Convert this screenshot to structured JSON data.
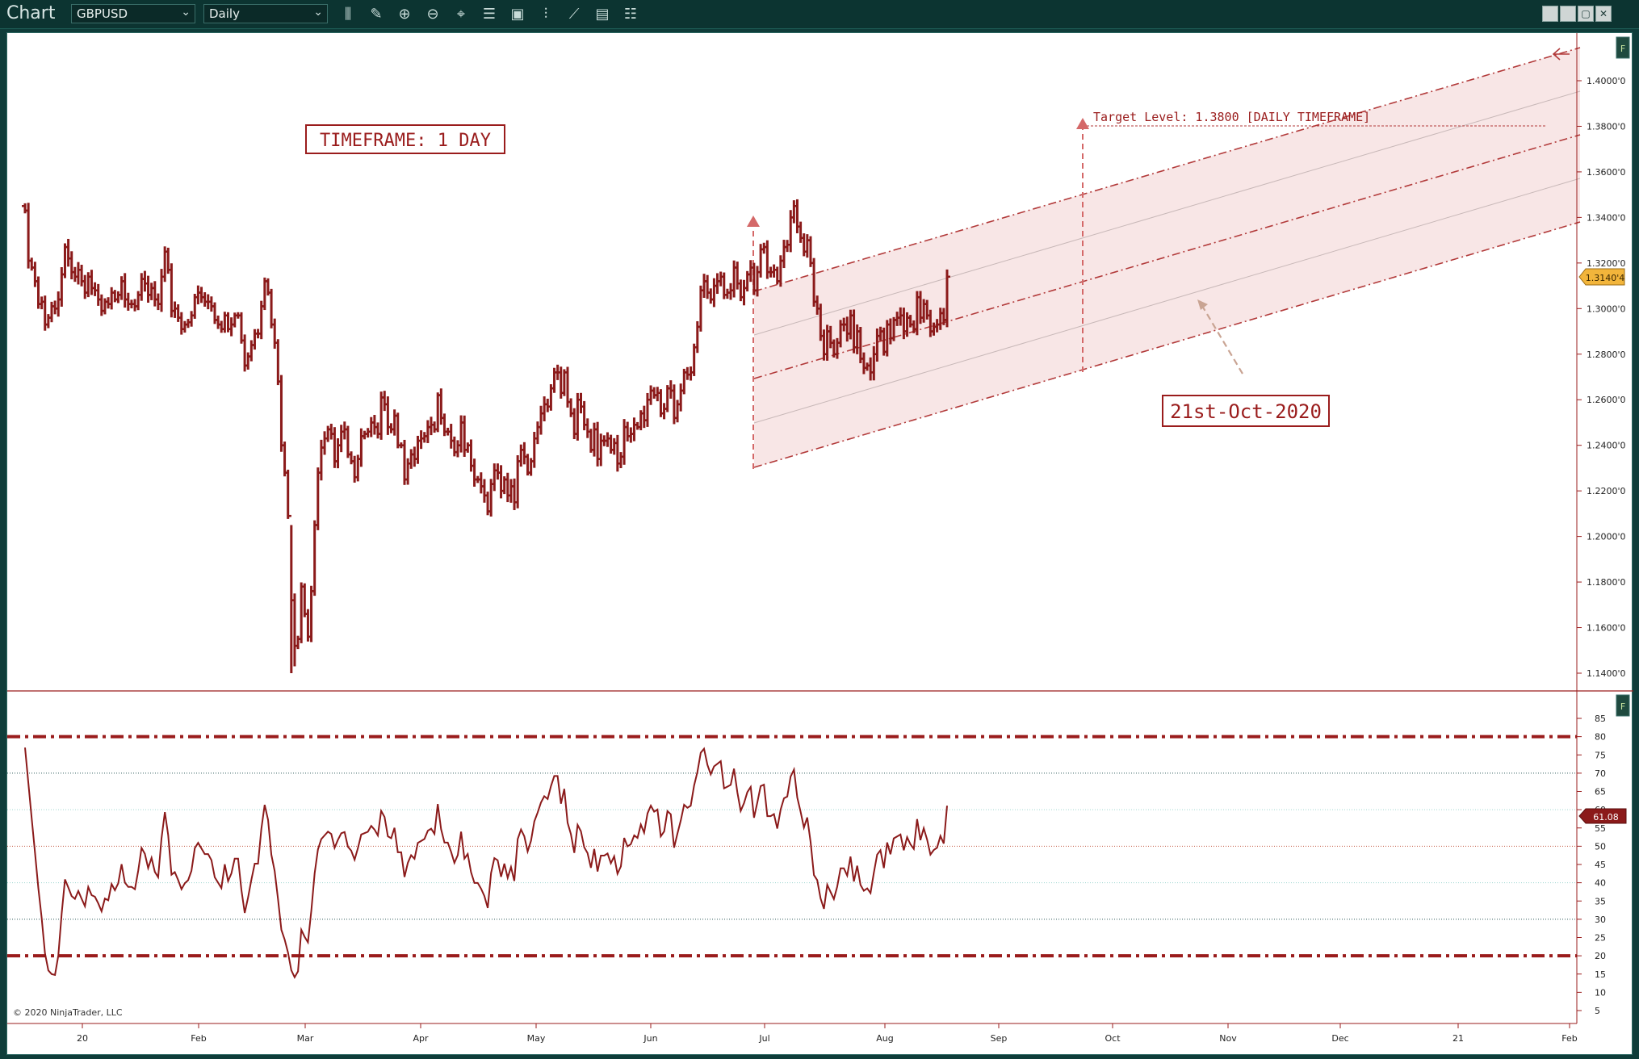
{
  "app": {
    "title": "Chart"
  },
  "toolbar": {
    "instrument": "GBPUSD",
    "interval": "Daily",
    "tools": [
      "bars-type-icon",
      "drawing-tool-icon",
      "zoom-in-icon",
      "zoom-out-icon",
      "crosshair-icon",
      "properties-icon",
      "layout-icon",
      "indicators-icon",
      "strategies-icon",
      "templates-icon",
      "data-box-icon"
    ]
  },
  "window_controls": [
    "minimize-box-icon",
    "restore-box-icon",
    "maximize-icon",
    "close-icon"
  ],
  "colors": {
    "bars": "#8b1a1a",
    "channel_fill": "#f7e3e3",
    "channel_line": "#b23a3a",
    "annotation": "#9a1c1c",
    "arrow": "#d46868",
    "price_marker": "#f2b53b",
    "rsi_marker": "#8b1a1a"
  },
  "annotations": {
    "timeframe_label": "TIMEFRAME: 1 DAY",
    "date_label": "21st-Oct-2020",
    "target_label": "Target Level: 1.3800 [DAILY TIMEFRAME]"
  },
  "price_panel": {
    "current_price_label": "1.3140'4",
    "scale_labels": [
      "1.4000'0",
      "1.3800'0",
      "1.3600'0",
      "1.3400'0",
      "1.3200'0",
      "1.3000'0",
      "1.2800'0",
      "1.2600'0",
      "1.2400'0",
      "1.2200'0",
      "1.2000'0",
      "1.1800'0",
      "1.1600'0",
      "1.1400'0"
    ],
    "panel_button": "F"
  },
  "rsi_panel": {
    "current_value_label": "61.08",
    "scale_labels": [
      "85",
      "80",
      "75",
      "70",
      "65",
      "60",
      "55",
      "50",
      "45",
      "40",
      "35",
      "30",
      "25",
      "20",
      "15",
      "10",
      "5"
    ],
    "panel_button": "F"
  },
  "x_axis": {
    "labels": [
      "20",
      "Feb",
      "Mar",
      "Apr",
      "May",
      "Jun",
      "Jul",
      "Aug",
      "Sep",
      "Oct",
      "Nov",
      "Dec",
      "21",
      "Feb"
    ]
  },
  "copyright": "© 2020 NinjaTrader, LLC",
  "chart_data": {
    "type": "ohlc",
    "instrument": "GBPUSD",
    "interval": "Daily",
    "ylim": [
      1.14,
      1.41
    ],
    "close": [
      1.343,
      1.321,
      1.318,
      1.312,
      1.302,
      1.303,
      1.293,
      1.296,
      1.301,
      1.3,
      1.304,
      1.315,
      1.327,
      1.322,
      1.316,
      1.314,
      1.317,
      1.312,
      1.307,
      1.314,
      1.309,
      1.308,
      1.304,
      1.299,
      1.303,
      1.302,
      1.307,
      1.304,
      1.306,
      1.312,
      1.304,
      1.302,
      1.302,
      1.301,
      1.306,
      1.313,
      1.311,
      1.306,
      1.309,
      1.304,
      1.302,
      1.314,
      1.325,
      1.317,
      1.299,
      1.3,
      1.296,
      1.291,
      1.293,
      1.294,
      1.297,
      1.305,
      1.307,
      1.305,
      1.303,
      1.303,
      1.301,
      1.295,
      1.293,
      1.291,
      1.297,
      1.291,
      1.293,
      1.297,
      1.297,
      1.286,
      1.275,
      1.279,
      1.284,
      1.289,
      1.289,
      1.301,
      1.312,
      1.307,
      1.293,
      1.285,
      1.268,
      1.24,
      1.228,
      1.209,
      1.172,
      1.152,
      1.155,
      1.178,
      1.166,
      1.156,
      1.176,
      1.205,
      1.228,
      1.239,
      1.243,
      1.247,
      1.245,
      1.233,
      1.24,
      1.246,
      1.247,
      1.236,
      1.233,
      1.226,
      1.234,
      1.244,
      1.245,
      1.246,
      1.25,
      1.248,
      1.245,
      1.261,
      1.258,
      1.248,
      1.247,
      1.253,
      1.24,
      1.24,
      1.225,
      1.232,
      1.236,
      1.234,
      1.242,
      1.243,
      1.244,
      1.248,
      1.249,
      1.247,
      1.262,
      1.252,
      1.246,
      1.246,
      1.242,
      1.237,
      1.24,
      1.25,
      1.238,
      1.24,
      1.231,
      1.225,
      1.225,
      1.222,
      1.218,
      1.211,
      1.223,
      1.229,
      1.228,
      1.22,
      1.225,
      1.218,
      1.222,
      1.215,
      1.233,
      1.238,
      1.235,
      1.228,
      1.233,
      1.243,
      1.248,
      1.254,
      1.258,
      1.257,
      1.265,
      1.272,
      1.272,
      1.263,
      1.272,
      1.259,
      1.254,
      1.245,
      1.26,
      1.257,
      1.249,
      1.246,
      1.238,
      1.247,
      1.234,
      1.242,
      1.242,
      1.243,
      1.238,
      1.241,
      1.232,
      1.235,
      1.248,
      1.244,
      1.245,
      1.249,
      1.248,
      1.254,
      1.251,
      1.26,
      1.264,
      1.262,
      1.263,
      1.254,
      1.256,
      1.265,
      1.264,
      1.252,
      1.258,
      1.264,
      1.272,
      1.271,
      1.272,
      1.283,
      1.292,
      1.308,
      1.312,
      1.307,
      1.304,
      1.31,
      1.312,
      1.314,
      1.306,
      1.307,
      1.308,
      1.318,
      1.311,
      1.305,
      1.309,
      1.315,
      1.318,
      1.308,
      1.316,
      1.326,
      1.327,
      1.316,
      1.316,
      1.317,
      1.312,
      1.321,
      1.327,
      1.328,
      1.34,
      1.345,
      1.336,
      1.331,
      1.325,
      1.33,
      1.32,
      1.303,
      1.3,
      1.288,
      1.28,
      1.29,
      1.285,
      1.28,
      1.285,
      1.293,
      1.293,
      1.289,
      1.297,
      1.283,
      1.29,
      1.278,
      1.274,
      1.275,
      1.272,
      1.28,
      1.288,
      1.29,
      1.281,
      1.293,
      1.287,
      1.295,
      1.296,
      1.297,
      1.29,
      1.296,
      1.293,
      1.291,
      1.305,
      1.296,
      1.302,
      1.297,
      1.29,
      1.292,
      1.293,
      1.298,
      1.295,
      1.314
    ]
  }
}
